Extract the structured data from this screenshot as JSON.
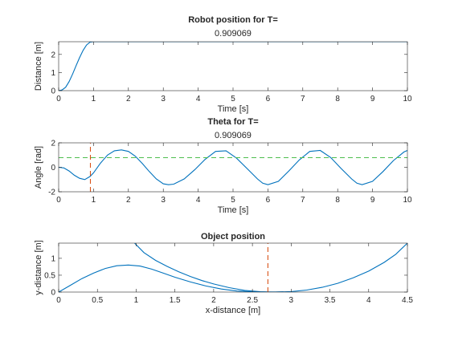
{
  "colors": {
    "series": "#0072BD",
    "marker": "#D95319",
    "reference": "#4DBE4D",
    "axis": "#262626"
  },
  "chart_data": [
    {
      "type": "line",
      "title": "Robot position for T=",
      "subtitle": "0.909069",
      "xlabel": "Time [s]",
      "ylabel": "Distance [m]",
      "xlim": [
        0,
        10
      ],
      "ylim": [
        0,
        2.7
      ],
      "xticks": [
        0,
        1,
        2,
        3,
        4,
        5,
        6,
        7,
        8,
        9,
        10
      ],
      "yticks": [
        0,
        1,
        2
      ],
      "grid": false,
      "series": [
        {
          "x": [
            0,
            0.1,
            0.2,
            0.3,
            0.4,
            0.5,
            0.6,
            0.7,
            0.8,
            0.9,
            1.0,
            10
          ],
          "y": [
            0,
            0.04,
            0.19,
            0.5,
            0.92,
            1.38,
            1.82,
            2.22,
            2.52,
            2.68,
            2.7,
            2.7
          ]
        }
      ]
    },
    {
      "type": "line",
      "title": "Theta for T=",
      "subtitle": "0.909069",
      "xlabel": "Time [s]",
      "ylabel": "Angle [rad]",
      "xlim": [
        0,
        10
      ],
      "ylim": [
        -2,
        2
      ],
      "xticks": [
        0,
        1,
        2,
        3,
        4,
        5,
        6,
        7,
        8,
        9,
        10
      ],
      "yticks": [
        -2,
        0,
        2
      ],
      "grid": false,
      "series": [
        {
          "x": [
            0,
            0.15,
            0.3,
            0.45,
            0.6,
            0.75,
            0.9,
            1.0,
            1.2,
            1.4,
            1.6,
            1.8,
            2.0,
            2.2,
            2.4,
            2.6,
            2.8,
            3.0,
            3.15,
            3.3,
            3.6,
            3.9,
            4.2,
            4.5,
            4.8,
            5.1,
            5.4,
            5.7,
            5.85,
            6.0,
            6.3,
            6.6,
            6.9,
            7.2,
            7.5,
            7.8,
            8.1,
            8.4,
            8.55,
            8.7,
            9.0,
            9.3,
            9.6,
            9.9,
            10
          ],
          "y": [
            0,
            -0.05,
            -0.3,
            -0.65,
            -0.9,
            -1.0,
            -0.75,
            -0.45,
            0.35,
            1.0,
            1.35,
            1.42,
            1.3,
            0.9,
            0.3,
            -0.35,
            -0.95,
            -1.35,
            -1.42,
            -1.38,
            -0.95,
            -0.2,
            0.65,
            1.3,
            1.35,
            0.75,
            -0.1,
            -0.95,
            -1.3,
            -1.42,
            -1.15,
            -0.3,
            0.6,
            1.3,
            1.38,
            0.8,
            -0.1,
            -0.95,
            -1.3,
            -1.42,
            -1.15,
            -0.35,
            0.55,
            1.25,
            1.38
          ]
        },
        {
          "name": "",
          "x": [
            0,
            10
          ],
          "y": [
            0.79,
            0.79
          ]
        },
        {
          "name": "",
          "x": [
            0.91,
            0.91
          ],
          "y": [
            -2,
            2
          ]
        }
      ]
    },
    {
      "type": "line",
      "title": "Object position",
      "xlabel": "x-distance [m]",
      "ylabel": "y-distance [m]",
      "xlim": [
        0,
        4.5
      ],
      "ylim": [
        0,
        1.45
      ],
      "xticks": [
        0,
        0.5,
        1,
        1.5,
        2,
        2.5,
        3,
        3.5,
        4,
        4.5
      ],
      "yticks": [
        0,
        0.5,
        1
      ],
      "grid": false,
      "series": [
        {
          "x": [
            0,
            0.15,
            0.3,
            0.45,
            0.6,
            0.75,
            0.9,
            1.05,
            1.2,
            1.35,
            1.5,
            1.7,
            1.9,
            2.1,
            2.3,
            2.5,
            2.7,
            2.9
          ],
          "y": [
            0,
            0.2,
            0.4,
            0.56,
            0.7,
            0.78,
            0.8,
            0.77,
            0.68,
            0.56,
            0.44,
            0.3,
            0.18,
            0.09,
            0.03,
            0.006,
            0,
            0.006
          ]
        },
        {
          "x": [
            0.98,
            1.1,
            1.25,
            1.4,
            1.55,
            1.7,
            1.85,
            2.0,
            2.2,
            2.4,
            2.6,
            2.8,
            3.0,
            3.2,
            3.4,
            3.6,
            3.8,
            4.0,
            4.2,
            4.35,
            4.5
          ],
          "y": [
            1.45,
            1.17,
            0.94,
            0.76,
            0.6,
            0.46,
            0.34,
            0.24,
            0.13,
            0.05,
            0.01,
            0,
            0.015,
            0.06,
            0.14,
            0.26,
            0.42,
            0.62,
            0.88,
            1.12,
            1.45
          ]
        },
        {
          "name": "",
          "x": [
            2.7,
            2.7
          ],
          "y": [
            0,
            1.45
          ]
        }
      ]
    }
  ]
}
